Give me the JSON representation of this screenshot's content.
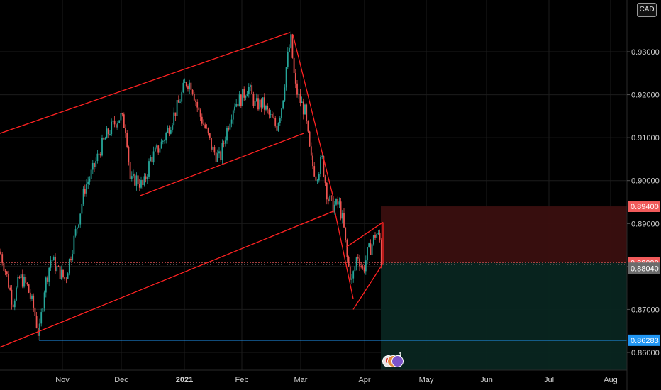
{
  "currency": "CAD",
  "events_count": "4",
  "colors": {
    "background": "#000000",
    "grid": "#1c1c1c",
    "up": "#26a69a",
    "down": "#ef5350",
    "trendline": "#ff2222",
    "support": "#2196f3",
    "stop_zone": "#3a0f0f",
    "target_zone": "#082520",
    "entry_badge": "#f05a5a",
    "current_badge": "#6b6b6b",
    "support_badge": "#2196f3"
  },
  "chart_data": {
    "type": "candlestick",
    "y_axis": {
      "ticks": [
        "0.86000",
        "0.87000",
        "0.88000",
        "0.89000",
        "0.90000",
        "0.91000",
        "0.92000",
        "0.93000"
      ],
      "range": [
        0.857,
        0.9435
      ]
    },
    "x_axis": {
      "ticks": [
        {
          "label": "Nov",
          "bold": false
        },
        {
          "label": "Dec",
          "bold": false
        },
        {
          "label": "2021",
          "bold": true
        },
        {
          "label": "Feb",
          "bold": false
        },
        {
          "label": "Mar",
          "bold": false
        },
        {
          "label": "Apr",
          "bold": false
        },
        {
          "label": "May",
          "bold": false
        },
        {
          "label": "Jun",
          "bold": false
        },
        {
          "label": "Jul",
          "bold": false
        },
        {
          "label": "Aug",
          "bold": false
        }
      ]
    },
    "price_path": [
      [
        0,
        0.8835
      ],
      [
        8,
        0.879
      ],
      [
        18,
        0.8715
      ],
      [
        28,
        0.8775
      ],
      [
        38,
        0.8755
      ],
      [
        48,
        0.87
      ],
      [
        55,
        0.8635
      ],
      [
        62,
        0.8745
      ],
      [
        72,
        0.882
      ],
      [
        82,
        0.879
      ],
      [
        92,
        0.877
      ],
      [
        102,
        0.8845
      ],
      [
        112,
        0.892
      ],
      [
        120,
        0.8985
      ],
      [
        130,
        0.902
      ],
      [
        142,
        0.9075
      ],
      [
        152,
        0.911
      ],
      [
        162,
        0.9135
      ],
      [
        170,
        0.915
      ],
      [
        178,
        0.912
      ],
      [
        184,
        0.8995
      ],
      [
        192,
        0.9005
      ],
      [
        202,
        0.8985
      ],
      [
        212,
        0.905
      ],
      [
        222,
        0.907
      ],
      [
        232,
        0.91
      ],
      [
        242,
        0.914
      ],
      [
        252,
        0.918
      ],
      [
        262,
        0.923
      ],
      [
        270,
        0.9225
      ],
      [
        280,
        0.916
      ],
      [
        290,
        0.912
      ],
      [
        300,
        0.907
      ],
      [
        310,
        0.905
      ],
      [
        320,
        0.912
      ],
      [
        330,
        0.918
      ],
      [
        340,
        0.919
      ],
      [
        350,
        0.922
      ],
      [
        360,
        0.9175
      ],
      [
        370,
        0.918
      ],
      [
        380,
        0.915
      ],
      [
        390,
        0.9125
      ],
      [
        398,
        0.918
      ],
      [
        404,
        0.927
      ],
      [
        410,
        0.933
      ],
      [
        416,
        0.922
      ],
      [
        422,
        0.919
      ],
      [
        430,
        0.916
      ],
      [
        438,
        0.905
      ],
      [
        446,
        0.901
      ],
      [
        454,
        0.905
      ],
      [
        462,
        0.896
      ],
      [
        470,
        0.894
      ],
      [
        478,
        0.8945
      ],
      [
        484,
        0.89
      ],
      [
        490,
        0.881
      ],
      [
        496,
        0.8765
      ],
      [
        504,
        0.883
      ],
      [
        512,
        0.879
      ],
      [
        518,
        0.883
      ],
      [
        524,
        0.885
      ],
      [
        530,
        0.888
      ],
      [
        536,
        0.886
      ],
      [
        538,
        0.8804
      ]
    ],
    "annotations": {
      "trendlines": [
        {
          "name": "upper-channel-line",
          "p1": [
            0,
            0.911
          ],
          "p2": [
            409,
            0.9345
          ]
        },
        {
          "name": "lower-channel-line",
          "p1": [
            0,
            0.8612
          ],
          "p2": [
            472,
            0.893
          ]
        },
        {
          "name": "inner-channel-line",
          "p1": [
            198,
            0.8965
          ],
          "p2": [
            428,
            0.911
          ]
        },
        {
          "name": "drop-line",
          "p1": [
            413,
            0.934
          ],
          "p2": [
            470,
            0.896
          ]
        },
        {
          "name": "wedge-upper-line",
          "p1": [
            488,
            0.8845
          ],
          "p2": [
            540,
            0.8903
          ]
        },
        {
          "name": "wedge-lower-line",
          "p1": [
            498,
            0.87
          ],
          "p2": [
            540,
            0.8807
          ]
        },
        {
          "name": "final-drop-line",
          "p1": [
            472,
            0.893
          ],
          "p2": [
            498,
            0.8725
          ]
        }
      ],
      "support_level": 0.86283,
      "entry": 0.8809,
      "stop": 0.894,
      "target": 0.857,
      "current": 0.8804
    },
    "price_labels": {
      "stop": "0.89400",
      "entry": "0.88090",
      "current": "0.88040",
      "support": "0.86283"
    }
  }
}
